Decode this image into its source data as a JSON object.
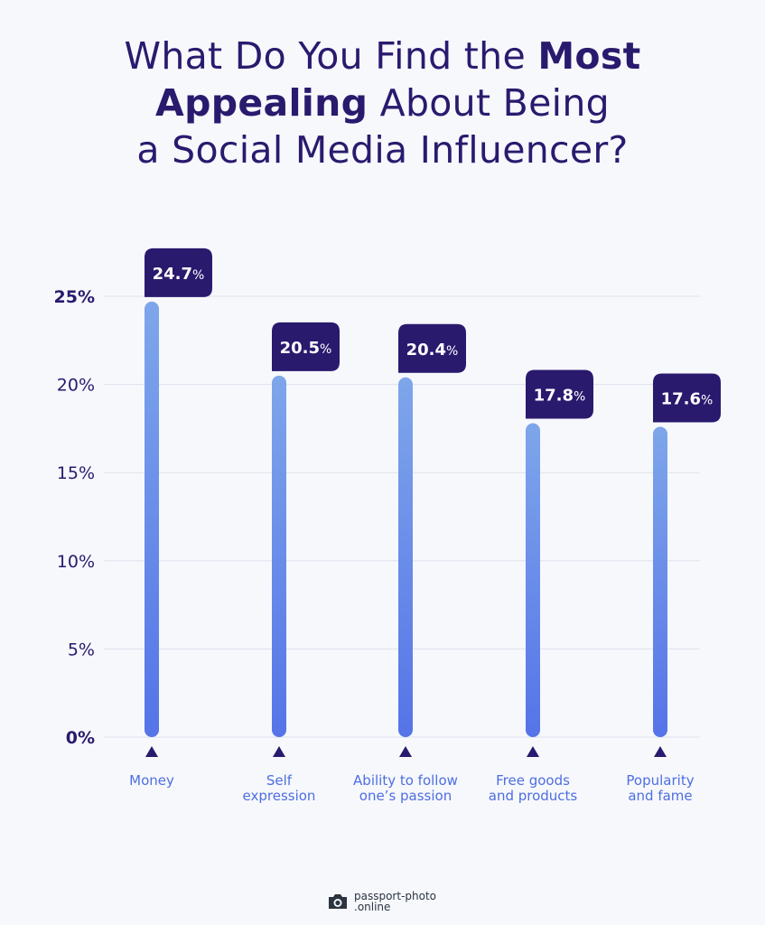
{
  "title": {
    "part1": "What Do You Find the ",
    "bold1": "Most",
    "bold2": "Appealing",
    "part2": " About Being",
    "line3": "a Social Media Influencer?"
  },
  "chart_data": {
    "type": "bar",
    "title": "What Do You Find the Most Appealing About Being a Social Media Influencer?",
    "categories": [
      [
        "Money"
      ],
      [
        "Self",
        "expression"
      ],
      [
        "Ability to follow",
        "one’s passion"
      ],
      [
        "Free goods",
        "and products"
      ],
      [
        "Popularity",
        "and fame"
      ]
    ],
    "values": [
      24.7,
      20.5,
      20.4,
      17.8,
      17.6
    ],
    "data_labels": [
      "24.7",
      "20.5",
      "20.4",
      "17.8",
      "17.6"
    ],
    "label_suffix": "%",
    "ylim": [
      0,
      25
    ],
    "yticks": [
      0,
      5,
      10,
      15,
      20,
      25
    ],
    "ytick_labels": [
      "0%",
      "5%",
      "10%",
      "15%",
      "20%",
      "25%"
    ],
    "grid": true,
    "colors": {
      "bar_top": "#7ea6ea",
      "bar_bottom": "#5574e8",
      "label_bg": "#2a1a6e",
      "text": "#2a1a6e",
      "category_text": "#4e6ee0",
      "grid": "#dde2ec"
    }
  },
  "logo": {
    "line1": "passport-photo",
    "line2": ".online",
    "icon": "camera-icon"
  }
}
